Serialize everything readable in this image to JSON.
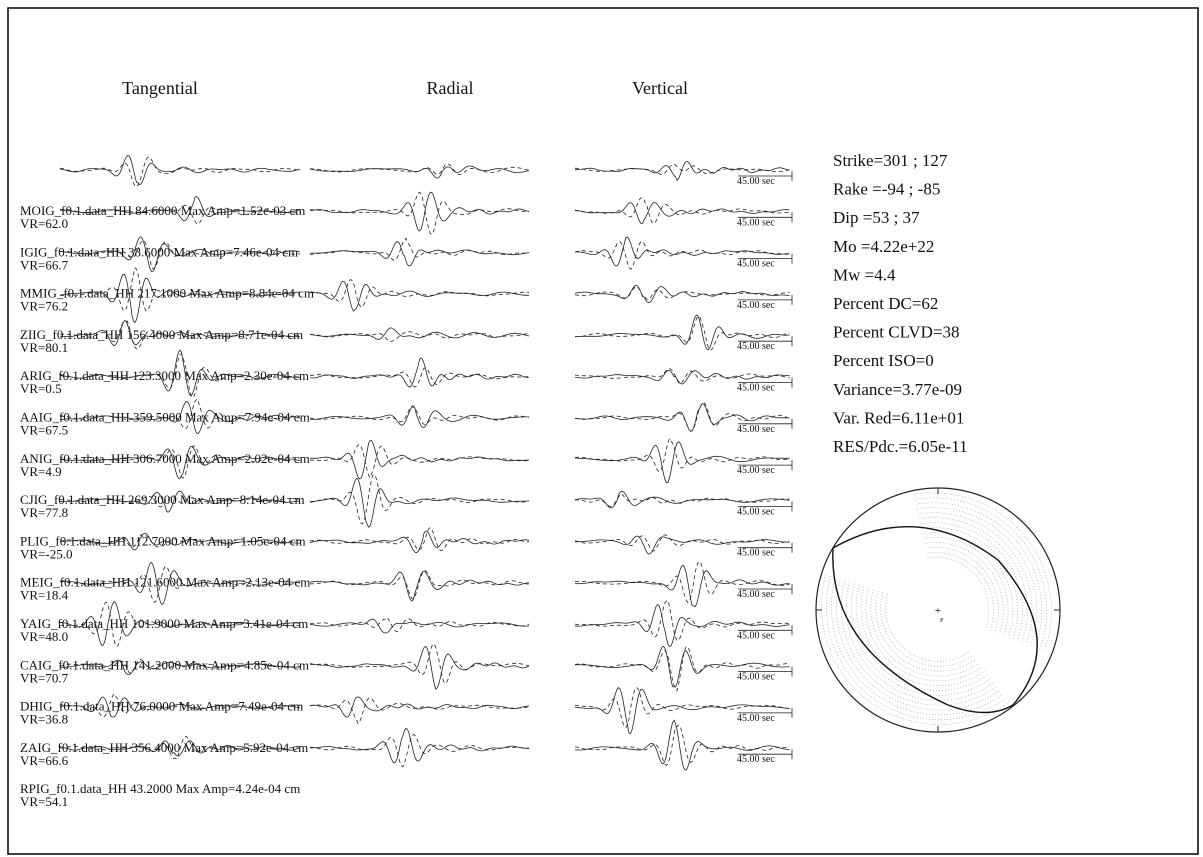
{
  "columns": [
    "Tangential",
    "Radial",
    "Vertical"
  ],
  "stations": [
    {
      "label": "MOIG_f0.1.data_HH 84.6000 Max Amp=1.52e-03 cm",
      "vr": "VR=62.0"
    },
    {
      "label": "IGIG_f0.1.data_HH 38.6000 Max Amp=7.46e-04 cm",
      "vr": "VR=66.7"
    },
    {
      "label": "MMIG_f0.1.data_HH 217.1000 Max Amp=8.84e-04 cm",
      "vr": "VR=76.2"
    },
    {
      "label": "ZIIG_f0.1.data_HH 156.4000 Max Amp=8.71e-04 cm",
      "vr": "VR=80.1"
    },
    {
      "label": "ARIG_f0.1.data_HH 123.3000 Max Amp=2.30e-04 cm",
      "vr": "VR=0.5"
    },
    {
      "label": "AAIG_f0.1.data_HH 359.5000 Max Amp=7.94e-04 cm",
      "vr": "VR=67.5"
    },
    {
      "label": "ANIG_f0.1.data_HH 306.7000 Max Amp=2.02e-04 cm",
      "vr": "VR=4.9"
    },
    {
      "label": "CJIG_f0.1.data_HH 269.3000 Max Amp=8.14e-04 cm",
      "vr": "VR=77.8"
    },
    {
      "label": "PLIG_f0.1.data_HH 112.7000 Max Amp=1.05e-04 cm",
      "vr": "VR=-25.0"
    },
    {
      "label": "MEIG_f0.1.data_HH 121.6000 Max Amp=2.13e-04 cm",
      "vr": "VR=18.4"
    },
    {
      "label": "YAIG_f0.1.data_HH 101.9000 Max Amp=3.41e-04 cm",
      "vr": "VR=48.0"
    },
    {
      "label": "CAIG_f0.1.data_HH 141.2000 Max Amp=4.85e-04 cm",
      "vr": "VR=70.7"
    },
    {
      "label": "DHIG_f0.1.data_HH 76.0000 Max Amp=7.49e-04 cm",
      "vr": "VR=36.8"
    },
    {
      "label": "ZAIG_f0.1.data_HH 356.4000 Max Amp=5.92e-04 cm",
      "vr": "VR=66.6"
    },
    {
      "label": "RPIG_f0.1.data_HH 43.2000 Max Amp=4.24e-04 cm",
      "vr": "VR=54.1"
    }
  ],
  "scale_labels": [
    "45.00 sec",
    "45.00 sec",
    "45.00 sec",
    "45.00 sec",
    "45.00 sec",
    "45.00 sec",
    "45.00 sec",
    "45.00 sec",
    "45.00 sec",
    "45.00 sec",
    "45.00 sec",
    "45.00 sec",
    "45.00 sec",
    "45.00 sec",
    "45.00 sec"
  ],
  "solution": [
    "Strike=301 ; 127",
    "Rake =-94 ; -85",
    "Dip =53 ; 37",
    "Mo =4.22e+22",
    "Mw =4.4",
    "Percent DC=62",
    "Percent CLVD=38",
    "Percent ISO=0",
    "Variance=3.77e-09",
    "Var. Red=6.11e+01",
    "RES/Pdc.=6.05e-11"
  ],
  "beachball": {
    "center_mark": "+",
    "p_mark": "P"
  }
}
